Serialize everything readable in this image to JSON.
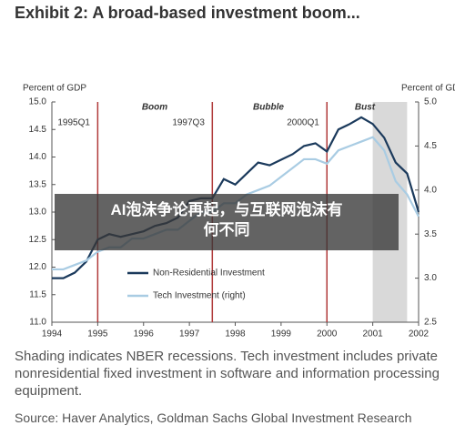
{
  "title": "Exhibit 2: A broad-based investment boom...",
  "overlay_headline": "AI泡沫争论再起，与互联网泡沫有何不同",
  "note": "Shading indicates NBER recessions. Tech investment includes private nonresidential fixed investment in software and information processing equipment.",
  "source": "Source: Haver Analytics, Goldman Sachs Global Investment Research",
  "chart_data": {
    "type": "line",
    "ylabel": "Percent of GDP",
    "y2label": "Percent of GDP",
    "x": [
      1994,
      1994.25,
      1994.5,
      1994.75,
      1995,
      1995.25,
      1995.5,
      1995.75,
      1996,
      1996.25,
      1996.5,
      1996.75,
      1997,
      1997.25,
      1997.5,
      1997.75,
      1998,
      1998.25,
      1998.5,
      1998.75,
      1999,
      1999.25,
      1999.5,
      1999.75,
      2000,
      2000.25,
      2000.5,
      2000.75,
      2001,
      2001.25,
      2001.5,
      2001.75,
      2002
    ],
    "series": [
      {
        "name": "Non-Residential Investment",
        "color": "#1b3a5c",
        "values": [
          11.8,
          11.8,
          11.9,
          12.1,
          12.5,
          12.6,
          12.55,
          12.6,
          12.65,
          12.75,
          12.8,
          12.9,
          13.2,
          13.25,
          13.25,
          13.6,
          13.5,
          13.7,
          13.9,
          13.85,
          13.95,
          14.05,
          14.2,
          14.25,
          14.1,
          14.5,
          14.6,
          14.72,
          14.6,
          14.35,
          13.9,
          13.7,
          13.0
        ]
      },
      {
        "name": "Tech Investment (right)",
        "color": "#a9cce3",
        "axis": "y2",
        "values": [
          3.1,
          3.1,
          3.15,
          3.2,
          3.3,
          3.35,
          3.35,
          3.45,
          3.45,
          3.5,
          3.55,
          3.55,
          3.65,
          3.75,
          3.75,
          3.85,
          3.85,
          3.95,
          4.0,
          4.05,
          4.15,
          4.25,
          4.35,
          4.35,
          4.3,
          4.45,
          4.5,
          4.55,
          4.6,
          4.45,
          4.1,
          3.95,
          3.7
        ]
      }
    ],
    "annotations": [
      {
        "x": 1995,
        "label": "1995Q1"
      },
      {
        "x": 1997.5,
        "label": "1997Q3"
      },
      {
        "x": 2000,
        "label": "2000Q1"
      }
    ],
    "periods": [
      "Boom",
      "Bubble",
      "Bust"
    ],
    "recession": [
      2001,
      2001.75
    ],
    "xlim": [
      1994,
      2002
    ],
    "xticks": [
      1994,
      1995,
      1996,
      1997,
      1998,
      1999,
      2000,
      2001,
      2002
    ],
    "ylim": [
      11,
      15
    ],
    "yticks": [
      {
        "value": 11,
        "label": "11.0"
      },
      {
        "value": 11.5,
        "label": "11.5"
      },
      {
        "value": 12,
        "label": "12.0"
      },
      {
        "value": 12.5,
        "label": "12.5"
      },
      {
        "value": 13,
        "label": "13.0"
      },
      {
        "value": 13.5,
        "label": "13.5"
      },
      {
        "value": 14,
        "label": "14.0"
      },
      {
        "value": 14.5,
        "label": "14.5"
      },
      {
        "value": 15,
        "label": "15.0"
      }
    ],
    "y2lim": [
      2.5,
      5
    ],
    "y2ticks": [
      {
        "value": 2.5,
        "label": "2.5"
      },
      {
        "value": 3,
        "label": "3.0"
      },
      {
        "value": 3.5,
        "label": "3.5"
      },
      {
        "value": 4,
        "label": "4.0"
      },
      {
        "value": 4.5,
        "label": "4.5"
      },
      {
        "value": 5,
        "label": "5.0"
      }
    ]
  }
}
